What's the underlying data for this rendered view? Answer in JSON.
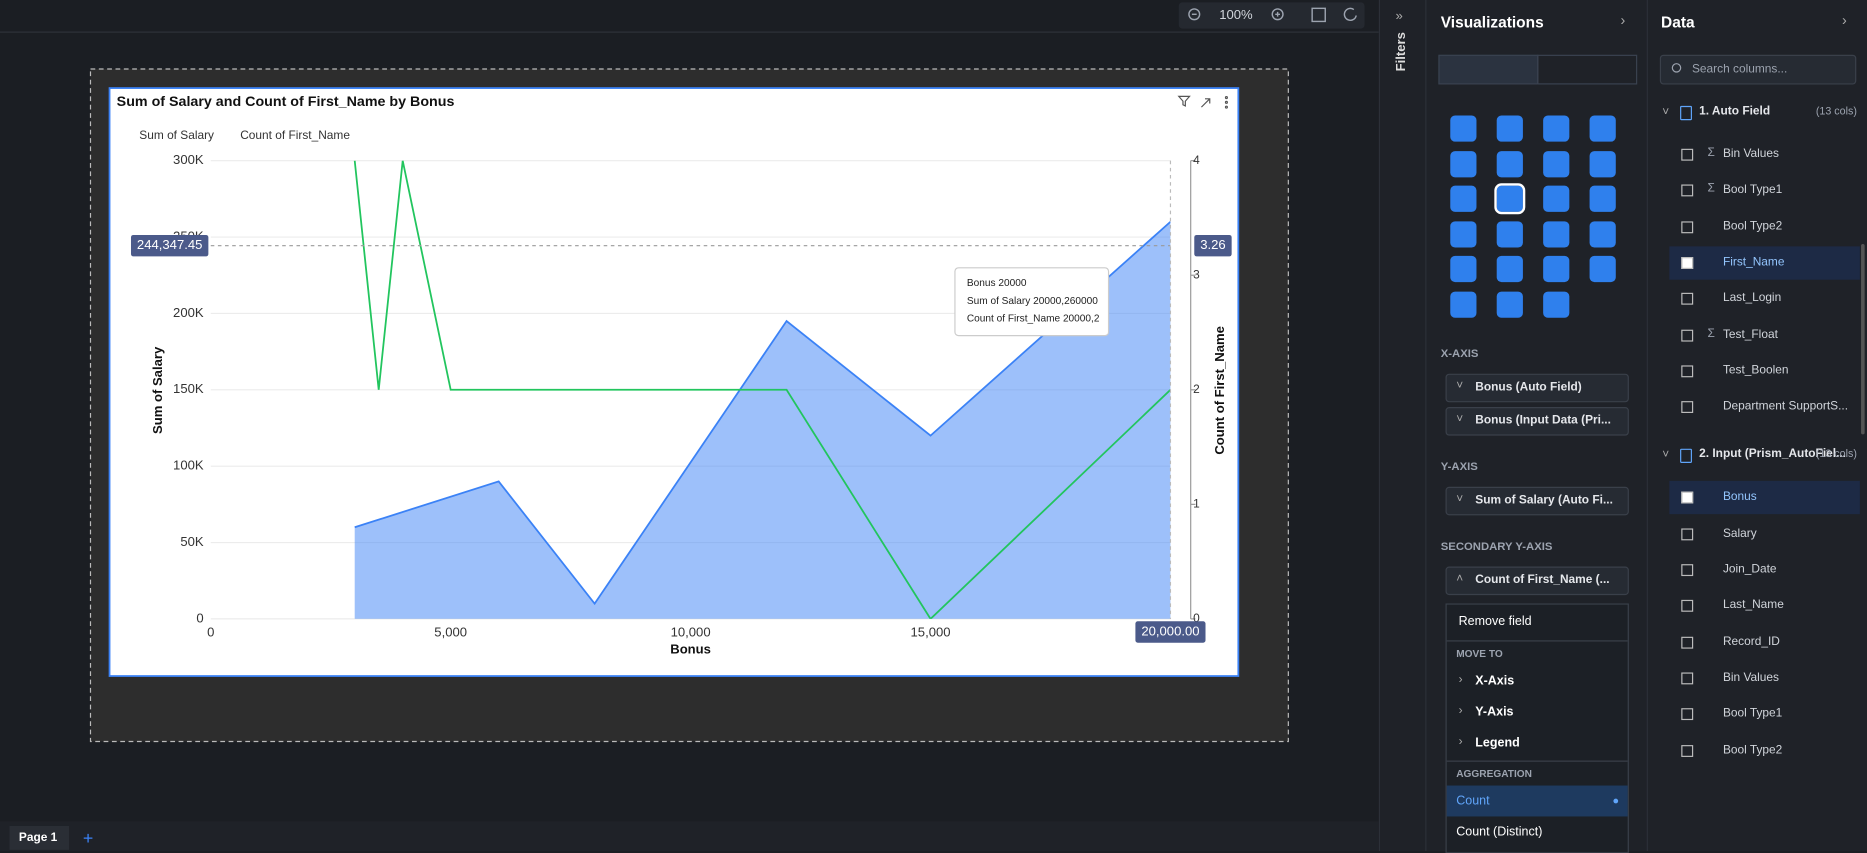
{
  "toolbar": {
    "zoom": "100%"
  },
  "chart_data": {
    "type": "area-line",
    "title": "Sum of Salary and Count of First_Name by Bonus",
    "x_label": "Bonus",
    "y_label": "Sum of Salary",
    "y2_label": "Count of First_Name",
    "series": [
      {
        "name": "Sum of Salary",
        "color": "#3b82f6",
        "kind": "area",
        "x": [
          3000,
          6000,
          8000,
          12000,
          15000,
          20000
        ],
        "values": [
          60000,
          90000,
          10000,
          195000,
          120000,
          260000
        ]
      },
      {
        "name": "Count of First_Name",
        "color": "#22c55e",
        "kind": "line",
        "axis": "y2",
        "x": [
          3000,
          3500,
          4000,
          5000,
          12000,
          15000,
          20000
        ],
        "values": [
          4,
          2,
          4,
          2,
          2,
          0,
          2
        ]
      }
    ],
    "xlim": [
      0,
      20000
    ],
    "xticks": [
      0,
      {
        "value": 5000,
        "label": "5,000"
      },
      {
        "value": 10000,
        "label": "10,000"
      },
      {
        "value": 15000,
        "label": "15,000"
      },
      {
        "value": 20000,
        "label": "20,000"
      }
    ],
    "ylim": [
      0,
      300000
    ],
    "yticks": [
      0,
      {
        "value": 50000,
        "label": "50K"
      },
      {
        "value": 100000,
        "label": "100K"
      },
      {
        "value": 150000,
        "label": "150K"
      },
      {
        "value": 200000,
        "label": "200K"
      },
      {
        "value": 250000,
        "label": "250K"
      },
      {
        "value": 300000,
        "label": "300K"
      }
    ],
    "y2lim": [
      0,
      4
    ],
    "y2ticks": [
      0,
      1,
      2,
      3,
      4
    ],
    "grid": true,
    "crosshair": {
      "y_label": "244,347.45",
      "y": 244347.45,
      "y2_label": "3.26",
      "x_label": "20,000.00",
      "x": 20000
    },
    "tooltip": [
      "Bonus  20000",
      "Sum of Salary  20000,260000",
      "Count of First_Name  20000,2"
    ]
  },
  "pages": [
    "Page 1"
  ],
  "filters": "Filters",
  "visualizations": {
    "title": "Visualizations",
    "wells": [
      {
        "label": "X-AXIS",
        "fields": [
          "Bonus (Auto Field)",
          "Bonus (Input Data (Pri..."
        ]
      },
      {
        "label": "Y-AXIS",
        "fields": [
          "Sum of Salary (Auto Fi..."
        ]
      },
      {
        "label": "SECONDARY Y-AXIS",
        "fields": [
          "Count of First_Name (..."
        ]
      }
    ],
    "menu": {
      "remove": "Remove field",
      "move_to": "MOVE TO",
      "move_items": [
        "X-Axis",
        "Y-Axis",
        "Legend"
      ],
      "aggregation": "AGGREGATION",
      "agg_items": [
        "Count",
        "Count (Distinct)"
      ]
    }
  },
  "data_panel": {
    "title": "Data",
    "search_placeholder": "Search columns...",
    "sources": [
      {
        "name": "1. Auto Field",
        "count": "(13 cols)",
        "columns": [
          {
            "name": "Bin Values",
            "numeric": true,
            "checked": false
          },
          {
            "name": "Bool Type1",
            "numeric": true,
            "checked": false
          },
          {
            "name": "Bool Type2",
            "numeric": false,
            "checked": false
          },
          {
            "name": "First_Name",
            "numeric": false,
            "checked": true
          },
          {
            "name": "Last_Login",
            "numeric": false,
            "checked": false
          },
          {
            "name": "Test_Float",
            "numeric": true,
            "checked": false
          },
          {
            "name": "Test_Boolen",
            "numeric": false,
            "checked": false
          },
          {
            "name": "Department SupportS...",
            "numeric": false,
            "checked": false
          }
        ]
      },
      {
        "name": "2. Input (Prism_AutoFiel...",
        "count": "(13 cols)",
        "columns": [
          {
            "name": "Bonus",
            "numeric": false,
            "checked": true
          },
          {
            "name": "Salary",
            "numeric": false,
            "checked": false
          },
          {
            "name": "Join_Date",
            "numeric": false,
            "checked": false
          },
          {
            "name": "Last_Name",
            "numeric": false,
            "checked": false
          },
          {
            "name": "Record_ID",
            "numeric": false,
            "checked": false
          },
          {
            "name": "Bin Values",
            "numeric": false,
            "checked": false
          },
          {
            "name": "Bool Type1",
            "numeric": false,
            "checked": false
          },
          {
            "name": "Bool Type2",
            "numeric": false,
            "checked": false
          }
        ]
      }
    ]
  }
}
